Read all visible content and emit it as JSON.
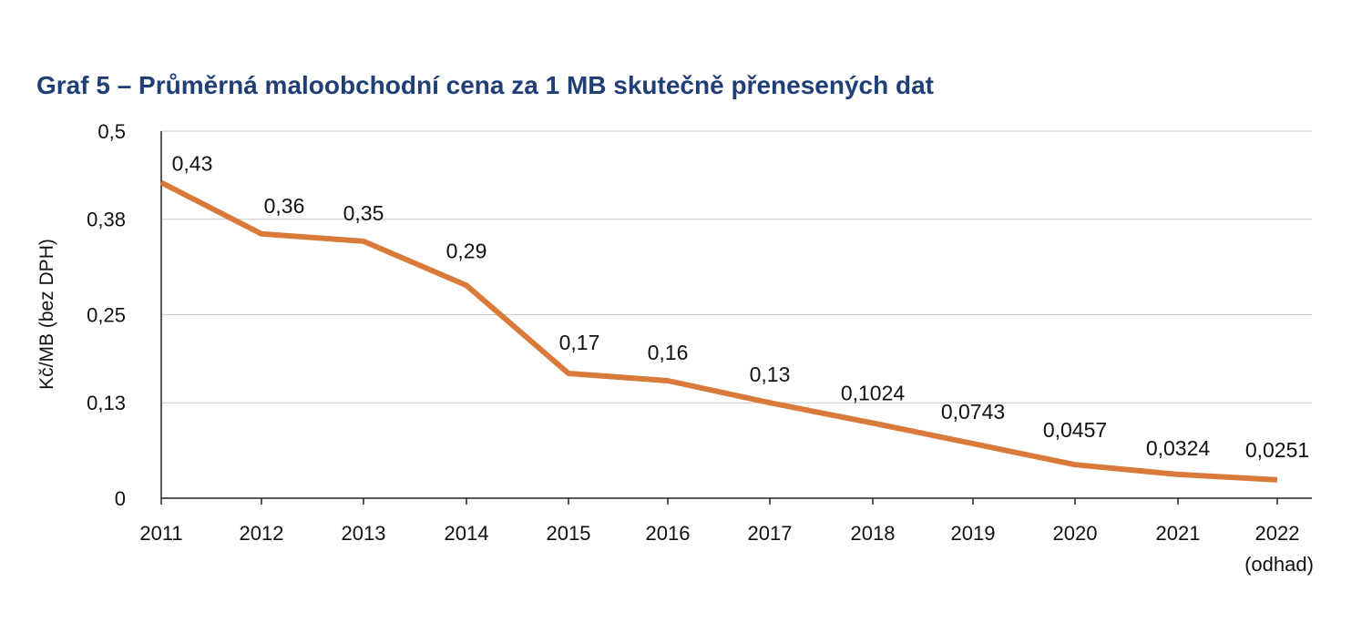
{
  "title": "Graf 5 – Průměrná maloobchodní cena za 1 MB skutečně přenesených dat",
  "colors": {
    "line": "#d97a3a",
    "title": "#1f3f76",
    "grid": "#c8c8c8",
    "axis": "#222222"
  },
  "chart_data": {
    "type": "line",
    "title": "Graf 5 – Průměrná maloobchodní cena za 1 MB skutečně přenesených dat",
    "ylabel": "Kč/MB (bez DPH)",
    "xlabel": "",
    "ylim": [
      0,
      0.5
    ],
    "yticks": [
      0,
      0.13,
      0.25,
      0.38,
      0.5
    ],
    "ytick_labels": [
      "0",
      "0,13",
      "0,25",
      "0,38",
      "0,5"
    ],
    "grid": true,
    "categories": [
      "2011",
      "2012",
      "2013",
      "2014",
      "2015",
      "2016",
      "2017",
      "2018",
      "2019",
      "2020",
      "2021",
      "2022"
    ],
    "category_sublabels": [
      "",
      "",
      "",
      "",
      "",
      "",
      "",
      "",
      "",
      "",
      "",
      "(odhad)"
    ],
    "series": [
      {
        "values": [
          0.43,
          0.36,
          0.35,
          0.29,
          0.17,
          0.16,
          0.13,
          0.1024,
          0.0743,
          0.0457,
          0.0324,
          0.0251
        ],
        "labels": [
          "0,43",
          "0,36",
          "0,35",
          "0,29",
          "0,17",
          "0,16",
          "0,13",
          "0,1024",
          "0,0743",
          "0,0457",
          "0,0324",
          "0,0251"
        ]
      }
    ]
  }
}
